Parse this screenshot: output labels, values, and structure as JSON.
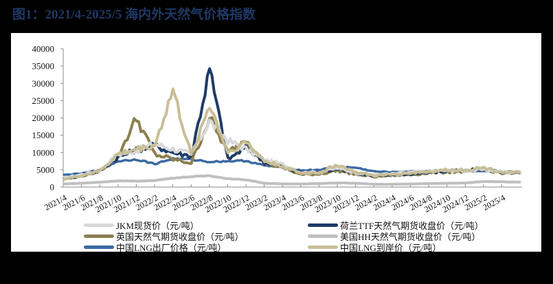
{
  "title": "图1：2021/4-2025/5 海内外天然气价格指数",
  "chart_data": {
    "type": "line",
    "title": "2021/4-2025/5 海内外天然气价格指数",
    "xlabel": "",
    "ylabel": "",
    "ylim": [
      0,
      40000
    ],
    "yticks": [
      0,
      5000,
      10000,
      15000,
      20000,
      25000,
      30000,
      35000,
      40000
    ],
    "grid": false,
    "legend_position": "bottom",
    "categories": [
      "2021/4",
      "2021/6",
      "2021/8",
      "2021/10",
      "2021/12",
      "2022/2",
      "2022/4",
      "2022/6",
      "2022/8",
      "2022/10",
      "2022/12",
      "2023/2",
      "2023/4",
      "2023/6",
      "2023/8",
      "2023/10",
      "2023/12",
      "2024/2",
      "2024/4",
      "2024/6",
      "2024/8",
      "2024/10",
      "2024/12",
      "2025/2",
      "2025/4",
      "2025/5"
    ],
    "series": [
      {
        "name": "JKM现货价（元/吨）",
        "color": "#d9d9d9",
        "values": [
          2600,
          3600,
          4800,
          9500,
          10500,
          12500,
          11000,
          9500,
          19000,
          13500,
          11000,
          7800,
          6500,
          4200,
          4300,
          5500,
          4200,
          3600,
          3800,
          4200,
          4600,
          4800,
          4700,
          5000,
          4400,
          4300
        ]
      },
      {
        "name": "荷兰TTF天然气期货收盘价（元/吨）",
        "color": "#1f3b66",
        "values": [
          2400,
          3300,
          4700,
          8600,
          10800,
          12000,
          10000,
          9000,
          34000,
          8000,
          11500,
          7200,
          5800,
          4100,
          4200,
          5500,
          4000,
          3200,
          3600,
          3800,
          4300,
          4600,
          4700,
          5200,
          4300,
          4200
        ]
      },
      {
        "name": "英国天然气期货收盘价（元/吨）",
        "color": "#8c8050",
        "values": [
          2300,
          3200,
          4600,
          9000,
          20000,
          9500,
          8000,
          7000,
          20000,
          10000,
          14000,
          7000,
          5600,
          3600,
          3800,
          4800,
          3700,
          3000,
          3400,
          3600,
          4100,
          4400,
          4500,
          5000,
          4100,
          4000
        ]
      },
      {
        "name": "美国HH天然气期货收盘价（元/吨）",
        "color": "#bfbfbf",
        "values": [
          900,
          1100,
          1400,
          1800,
          1700,
          1900,
          2600,
          3000,
          3300,
          2400,
          2100,
          1100,
          900,
          900,
          1000,
          1200,
          1100,
          800,
          800,
          900,
          1000,
          1100,
          1200,
          1600,
          1500,
          1400
        ]
      },
      {
        "name": "中国LNG出厂价格（元/吨）",
        "color": "#3d6aa3",
        "values": [
          3500,
          3900,
          5000,
          7500,
          8000,
          6700,
          8200,
          8000,
          7300,
          7500,
          7600,
          6200,
          5700,
          4800,
          5000,
          5800,
          5600,
          4500,
          4300,
          4500,
          4700,
          4900,
          4600,
          4500,
          4400,
          4300
        ]
      },
      {
        "name": "中国LNG到岸价（元/吨）",
        "color": "#c8be96",
        "values": [
          2200,
          3300,
          4700,
          9500,
          11000,
          12000,
          28000,
          9000,
          24000,
          10000,
          13000,
          7500,
          6000,
          4000,
          4200,
          6500,
          4200,
          3300,
          3700,
          4100,
          4500,
          4900,
          5000,
          5600,
          4300,
          4200
        ]
      }
    ]
  },
  "axes": {
    "y_labels": [
      "40000",
      "35000",
      "30000",
      "25000",
      "20000",
      "15000",
      "10000",
      "5000",
      "0"
    ],
    "x_labels": [
      "2021/4",
      "2021/6",
      "2021/8",
      "2021/10",
      "2021/12",
      "2022/2",
      "2022/4",
      "2022/6",
      "2022/8",
      "2022/10",
      "2022/12",
      "2023/2",
      "2023/4",
      "2023/6",
      "2023/8",
      "2023/10",
      "2023/12",
      "2024/2",
      "2024/4",
      "2024/6",
      "2024/8",
      "2024/10",
      "2024/12",
      "2025/2",
      "2025/4"
    ]
  },
  "legend": [
    {
      "label": "JKM现货价（元/吨）",
      "color": "#d9d9d9"
    },
    {
      "label": "荷兰TTF天然气期货收盘价（元/吨）",
      "color": "#1f3b66"
    },
    {
      "label": "英国天然气期货收盘价（元/吨）",
      "color": "#8c8050"
    },
    {
      "label": "美国HH天然气期货收盘价（元/吨）",
      "color": "#bfbfbf"
    },
    {
      "label": "中国LNG出厂价格（元/吨）",
      "color": "#3d6aa3"
    },
    {
      "label": "中国LNG到岸价（元/吨）",
      "color": "#c8be96"
    }
  ]
}
